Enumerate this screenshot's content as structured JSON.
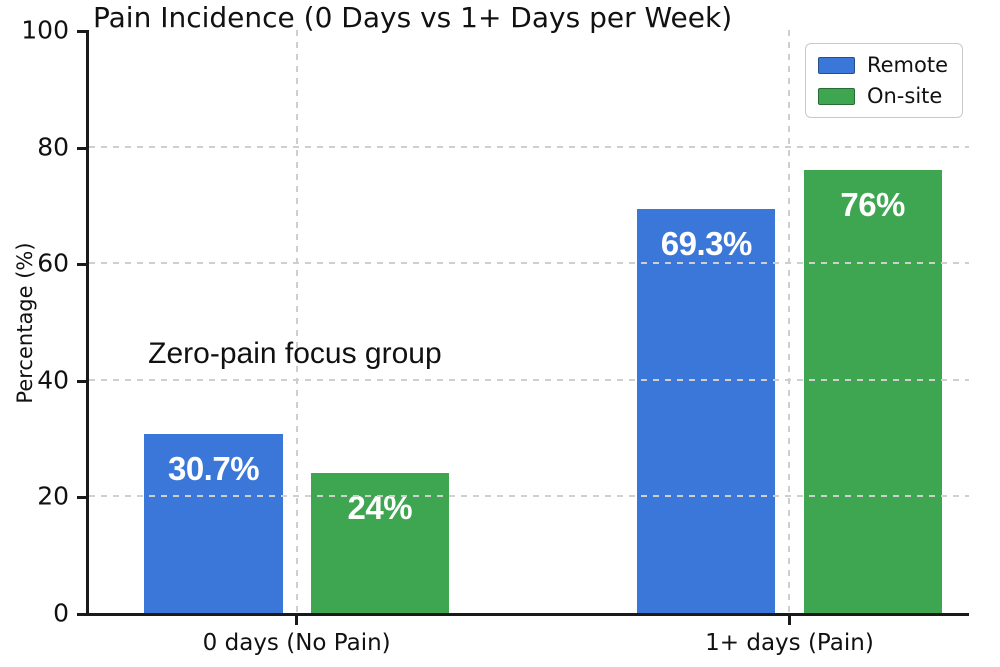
{
  "chart_data": {
    "type": "bar",
    "title": "Pain Incidence (0 Days vs 1+ Days per Week)",
    "ylabel": "Percentage (%)",
    "xlabel": "",
    "categories": [
      "0 days (No Pain)",
      "1+ days (Pain)"
    ],
    "series": [
      {
        "name": "Remote",
        "color": "#3b77d8",
        "values": [
          30.7,
          69.3
        ],
        "labels": [
          "30.7%",
          "69.3%"
        ]
      },
      {
        "name": "On-site",
        "color": "#3ea551",
        "values": [
          24,
          76
        ],
        "labels": [
          "24%",
          "76%"
        ]
      }
    ],
    "ylim": [
      0,
      100
    ],
    "ytick_labels": [
      "0",
      "20",
      "40",
      "60",
      "80",
      "100"
    ],
    "ytick_values": [
      0,
      20,
      40,
      60,
      80,
      100
    ],
    "gridline_values": [
      20,
      40,
      60,
      80
    ],
    "grid": "dashed",
    "legend_position": "upper right",
    "annotation": {
      "text": "Zero-pain focus group"
    },
    "layout": {
      "group_centers_frac": [
        0.236,
        0.796
      ],
      "bar_width_frac": 0.157,
      "bar_gap_frac": 0.032
    }
  }
}
